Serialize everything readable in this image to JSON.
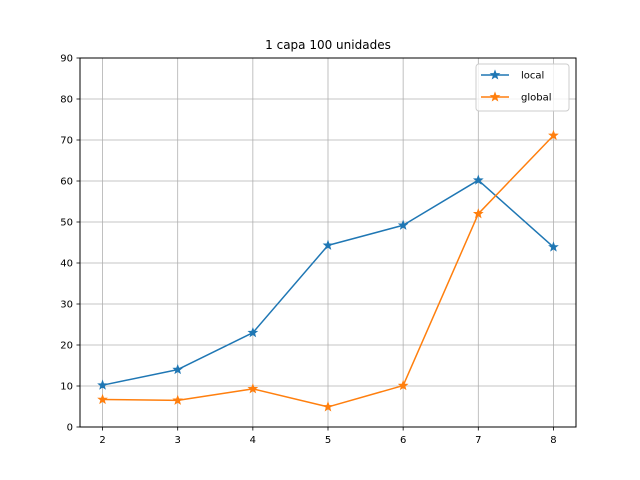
{
  "chart_data": {
    "type": "line",
    "title": "1 capa 100 unidades",
    "xlabel": "",
    "ylabel": "",
    "x": [
      2,
      3,
      4,
      5,
      6,
      7,
      8
    ],
    "xlim": [
      1.7,
      8.3
    ],
    "ylim": [
      0,
      90
    ],
    "xticks": [
      2,
      3,
      4,
      5,
      6,
      7,
      8
    ],
    "yticks": [
      0,
      10,
      20,
      30,
      40,
      50,
      60,
      70,
      80,
      90
    ],
    "grid": true,
    "legend_position": "top-right",
    "marker": "star",
    "series": [
      {
        "name": "local",
        "color": "#1f77b4",
        "values": [
          10.2,
          14.0,
          23.0,
          44.3,
          49.2,
          60.2,
          43.9
        ]
      },
      {
        "name": "global",
        "color": "#ff7f0e",
        "values": [
          6.7,
          6.5,
          9.3,
          4.9,
          10.1,
          52.0,
          71.1
        ]
      }
    ]
  }
}
